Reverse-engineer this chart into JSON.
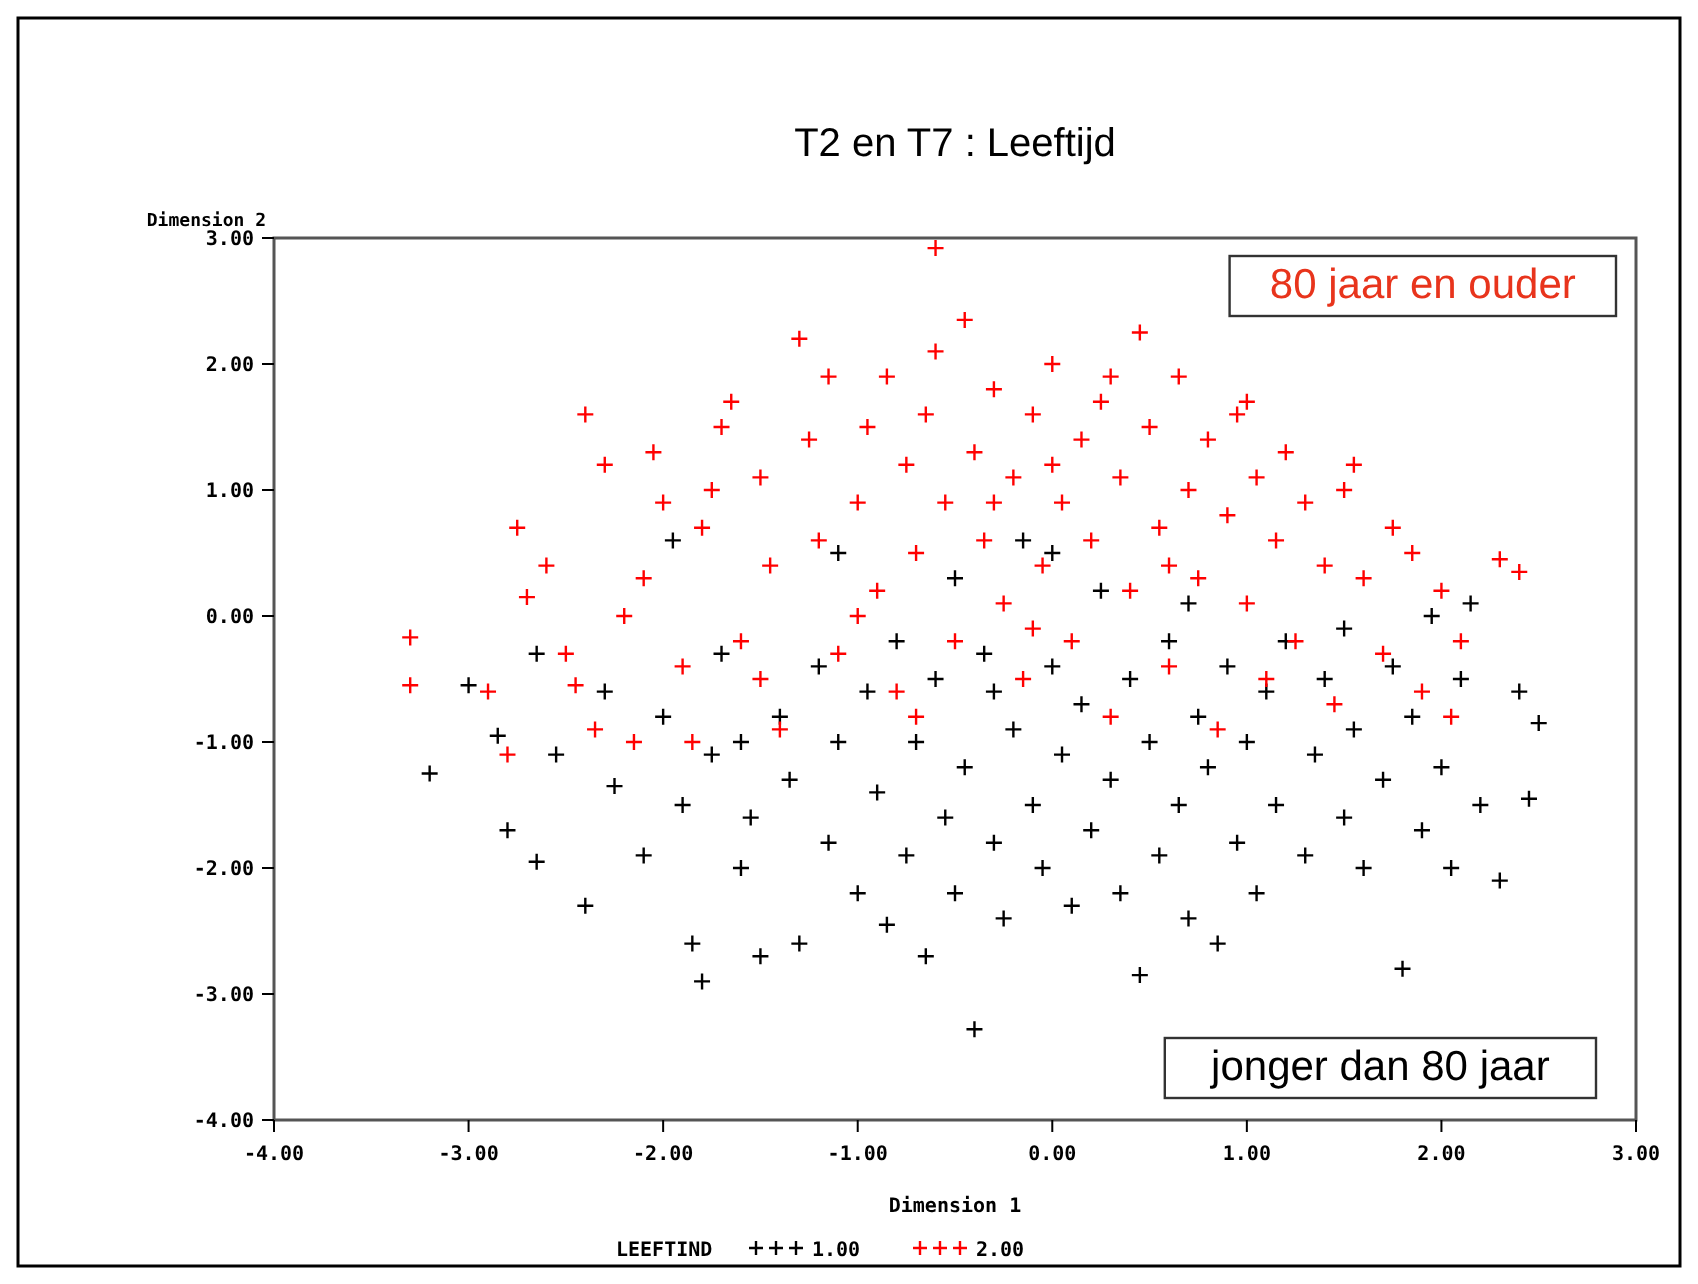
{
  "chart_data": {
    "type": "scatter",
    "title": "T2 en T7 : Leeftijd",
    "xlabel": "Dimension 1",
    "ylabel": "Dimension 2",
    "legend_title": "LEEFTIND",
    "legend": "bottom",
    "marker": "cross",
    "grid": false,
    "annotations": [
      "80 jaar en ouder",
      "jonger dan 80 jaar"
    ],
    "xlim": [
      -4,
      3
    ],
    "xticks": [
      {
        "value": -4,
        "label": "-4.00"
      },
      {
        "value": -3,
        "label": "-3.00"
      },
      {
        "value": -2,
        "label": "-2.00"
      },
      {
        "value": -1,
        "label": "-1.00"
      },
      {
        "value": 0,
        "label": "0.00"
      },
      {
        "value": 1,
        "label": "1.00"
      },
      {
        "value": 2,
        "label": "2.00"
      },
      {
        "value": 3,
        "label": "3.00"
      }
    ],
    "ylim": [
      -4,
      3
    ],
    "yticks": [
      {
        "value": -4,
        "label": "-4.00"
      },
      {
        "value": -3,
        "label": "-3.00"
      },
      {
        "value": -2,
        "label": "-2.00"
      },
      {
        "value": -1,
        "label": "-1.00"
      },
      {
        "value": 0,
        "label": "0.00"
      },
      {
        "value": 1,
        "label": "1.00"
      },
      {
        "value": 2,
        "label": "2.00"
      },
      {
        "value": 3,
        "label": "3.00"
      }
    ],
    "series": [
      {
        "name": "1.00",
        "color": "#000000",
        "x": [
          -3.2,
          -3.0,
          -2.85,
          -2.8,
          -2.65,
          -2.55,
          -2.4,
          -2.3,
          -2.25,
          -2.1,
          -2.0,
          -1.95,
          -1.9,
          -1.85,
          -1.8,
          -1.75,
          -1.7,
          -1.6,
          -1.55,
          -1.5,
          -1.4,
          -1.35,
          -1.3,
          -1.2,
          -1.15,
          -1.1,
          -1.0,
          -0.95,
          -0.9,
          -0.85,
          -0.8,
          -0.75,
          -0.7,
          -0.65,
          -0.6,
          -0.55,
          -0.5,
          -0.45,
          -0.4,
          -0.35,
          -0.3,
          -0.25,
          -0.2,
          -0.15,
          -0.1,
          -0.05,
          0.0,
          0.05,
          0.1,
          0.15,
          0.2,
          0.25,
          0.3,
          0.35,
          0.4,
          0.45,
          0.5,
          0.55,
          0.6,
          0.65,
          0.7,
          0.75,
          0.8,
          0.85,
          0.9,
          0.95,
          1.0,
          1.05,
          1.1,
          1.15,
          1.2,
          1.3,
          1.35,
          1.4,
          1.5,
          1.55,
          1.6,
          1.7,
          1.75,
          1.8,
          1.85,
          1.9,
          1.95,
          2.0,
          2.05,
          2.1,
          2.2,
          2.3,
          2.4,
          2.5,
          2.45,
          2.15,
          -2.65,
          -1.1,
          0.0,
          -0.5,
          1.5,
          -1.6,
          0.7,
          -0.3
        ],
        "values": [
          -1.25,
          -0.55,
          -0.95,
          -1.7,
          -1.95,
          -1.1,
          -2.3,
          -0.6,
          -1.35,
          -1.9,
          -0.8,
          0.6,
          -1.5,
          -2.6,
          -2.9,
          -1.1,
          -0.3,
          -2.0,
          -1.6,
          -2.7,
          -0.8,
          -1.3,
          -2.6,
          -0.4,
          -1.8,
          -1.0,
          -2.2,
          -0.6,
          -1.4,
          -2.45,
          -0.2,
          -1.9,
          -1.0,
          -2.7,
          -0.5,
          -1.6,
          -2.2,
          -1.2,
          -3.28,
          -0.3,
          -1.8,
          -2.4,
          -0.9,
          0.6,
          -1.5,
          -2.0,
          -0.4,
          -1.1,
          -2.3,
          -0.7,
          -1.7,
          0.2,
          -1.3,
          -2.2,
          -0.5,
          -2.85,
          -1.0,
          -1.9,
          -0.2,
          -1.5,
          -2.4,
          -0.8,
          -1.2,
          -2.6,
          -0.4,
          -1.8,
          -1.0,
          -2.2,
          -0.6,
          -1.5,
          -0.2,
          -1.9,
          -1.1,
          -0.5,
          -1.6,
          -0.9,
          -2.0,
          -1.3,
          -0.4,
          -2.8,
          -0.8,
          -1.7,
          0.0,
          -1.2,
          -2.0,
          -0.5,
          -1.5,
          -2.1,
          -0.6,
          -0.85,
          -1.45,
          0.1,
          -0.3,
          0.5,
          0.5,
          0.3,
          -0.1,
          -1.0,
          0.1,
          -0.6
        ]
      },
      {
        "name": "2.00",
        "color": "#ff0000",
        "x": [
          -0.6,
          -3.3,
          -3.3,
          -2.9,
          -2.8,
          -2.75,
          -2.7,
          -2.6,
          -2.5,
          -2.45,
          -2.4,
          -2.35,
          -2.3,
          -2.2,
          -2.1,
          -2.05,
          -2.0,
          -1.9,
          -1.85,
          -1.8,
          -1.75,
          -1.65,
          -1.6,
          -1.5,
          -1.45,
          -1.4,
          -1.3,
          -1.25,
          -1.2,
          -1.15,
          -1.1,
          -1.0,
          -0.95,
          -0.9,
          -0.85,
          -0.8,
          -0.75,
          -0.7,
          -0.65,
          -0.6,
          -0.55,
          -0.5,
          -0.45,
          -0.4,
          -0.35,
          -0.3,
          -0.25,
          -0.2,
          -0.15,
          -0.1,
          -0.05,
          0.0,
          0.05,
          0.1,
          0.15,
          0.2,
          0.25,
          0.3,
          0.35,
          0.4,
          0.45,
          0.5,
          0.55,
          0.6,
          0.65,
          0.7,
          0.75,
          0.8,
          0.85,
          0.9,
          0.95,
          1.0,
          1.05,
          1.1,
          1.15,
          1.2,
          1.25,
          1.3,
          1.4,
          1.45,
          1.5,
          1.6,
          1.7,
          1.75,
          1.85,
          1.9,
          2.0,
          2.05,
          2.1,
          2.3,
          2.4,
          -1.7,
          -2.15,
          -0.7,
          0.0,
          0.3,
          -0.3,
          1.0,
          1.55,
          -1.0,
          -1.5,
          0.6,
          -0.1
        ],
        "values": [
          2.92,
          -0.17,
          -0.55,
          -0.6,
          -1.1,
          0.7,
          0.15,
          0.4,
          -0.3,
          -0.55,
          1.6,
          -0.9,
          1.2,
          0.0,
          0.3,
          1.3,
          0.9,
          -0.4,
          -1.0,
          0.7,
          1.0,
          1.7,
          -0.2,
          1.1,
          0.4,
          -0.9,
          2.2,
          1.4,
          0.6,
          1.9,
          -0.3,
          0.9,
          1.5,
          0.2,
          1.9,
          -0.6,
          1.2,
          0.5,
          1.6,
          2.1,
          0.9,
          -0.2,
          2.35,
          1.3,
          0.6,
          1.8,
          0.1,
          1.1,
          -0.5,
          1.6,
          0.4,
          2.0,
          0.9,
          -0.2,
          1.4,
          0.6,
          1.7,
          -0.8,
          1.1,
          0.2,
          2.25,
          1.5,
          0.7,
          -0.4,
          1.9,
          1.0,
          0.3,
          1.4,
          -0.9,
          0.8,
          1.6,
          0.1,
          1.1,
          -0.5,
          0.6,
          1.3,
          -0.2,
          0.9,
          0.4,
          -0.7,
          1.0,
          0.3,
          -0.3,
          0.7,
          0.5,
          -0.6,
          0.2,
          -0.8,
          -0.2,
          0.45,
          0.35,
          1.5,
          -1.0,
          -0.8,
          1.2,
          1.9,
          0.9,
          1.7,
          1.2,
          0.0,
          -0.5,
          0.4,
          -0.1
        ]
      }
    ]
  }
}
